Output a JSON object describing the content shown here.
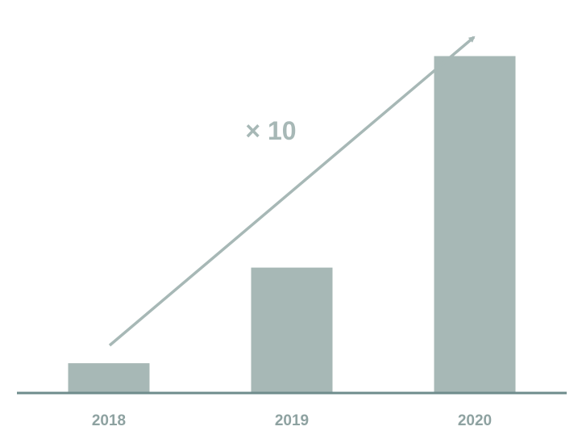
{
  "chart_data": {
    "type": "bar",
    "categories": [
      "2018",
      "2019",
      "2020"
    ],
    "values": [
      1,
      4.3,
      11.6
    ],
    "ylim": [
      0,
      12.7
    ],
    "grid": false,
    "legend": "none",
    "annotation": "× 10",
    "colors": {
      "bar": "#a7b8b6",
      "axis": "#6f8c8c",
      "arrow": "#a7b8b6",
      "tick_text": "#8ea2a1",
      "annotation_text": "#a7b8b6"
    }
  }
}
